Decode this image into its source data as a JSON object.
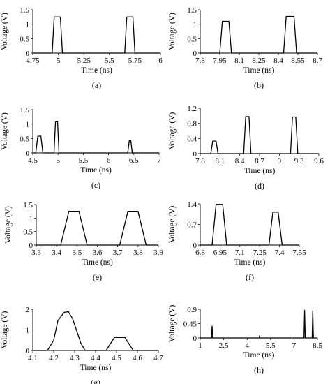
{
  "chart_data": [
    {
      "panel": "(a)",
      "type": "line",
      "xlabel": "Time (ns)",
      "ylabel": "Voltage (V)",
      "xlim": [
        4.75,
        6
      ],
      "ylim": [
        0,
        1.5
      ],
      "xticks": [
        "4.75",
        "5",
        "5.25",
        "5.5",
        "5.75",
        "6"
      ],
      "yticks": [
        "0",
        "0.5",
        "1",
        "1.5"
      ],
      "series": [
        {
          "x": [
            4.75,
            4.94,
            4.96,
            5.02,
            5.04,
            5.65,
            5.67,
            5.73,
            5.75,
            6.0
          ],
          "y": [
            0,
            0,
            1.25,
            1.25,
            0,
            0,
            1.25,
            1.25,
            0,
            0
          ]
        }
      ]
    },
    {
      "panel": "(b)",
      "type": "line",
      "xlabel": "Time (ns)",
      "ylabel": "Voltage (V)",
      "xlim": [
        7.8,
        8.7
      ],
      "ylim": [
        0,
        1.5
      ],
      "xticks": [
        "7.8",
        "7.95",
        "8.1",
        "8.25",
        "8.4",
        "8.55",
        "8.7"
      ],
      "yticks": [
        "0",
        "0.5",
        "1",
        "1.5"
      ],
      "series": [
        {
          "x": [
            7.8,
            7.95,
            7.97,
            8.02,
            8.04,
            8.44,
            8.46,
            8.52,
            8.54,
            8.7
          ],
          "y": [
            0,
            0,
            1.1,
            1.1,
            0,
            0,
            1.27,
            1.27,
            0,
            0
          ]
        }
      ]
    },
    {
      "panel": "(c)",
      "type": "line",
      "xlabel": "Time (ns)",
      "ylabel": "Voltage (V)",
      "xlim": [
        4.5,
        7
      ],
      "ylim": [
        0,
        1.5
      ],
      "xticks": [
        "4.5",
        "5",
        "5.5",
        "6",
        "6.5",
        "7"
      ],
      "yticks": [
        "0",
        "0.5",
        "1",
        "1.5"
      ],
      "series": [
        {
          "x": [
            4.5,
            4.56,
            4.6,
            4.66,
            4.7,
            4.92,
            4.95,
            4.99,
            5.02,
            6.38,
            6.41,
            6.44,
            6.47,
            7.0
          ],
          "y": [
            0,
            0,
            0.58,
            0.58,
            0,
            0,
            1.08,
            1.08,
            0,
            0,
            0.42,
            0.42,
            0,
            0
          ]
        }
      ]
    },
    {
      "panel": "(d)",
      "type": "line",
      "xlabel": "Time (ns)",
      "ylabel": "Voltage (V)",
      "xlim": [
        7.8,
        9.6
      ],
      "ylim": [
        0,
        1.2
      ],
      "xticks": [
        "7.8",
        "8.1",
        "8.4",
        "8.7",
        "9",
        "9.3",
        "9.6"
      ],
      "yticks": [
        "0",
        "0.4",
        "0.8",
        "1.2"
      ],
      "series": [
        {
          "x": [
            7.8,
            7.96,
            7.99,
            8.04,
            8.07,
            8.46,
            8.49,
            8.54,
            8.57,
            9.17,
            9.2,
            9.25,
            9.28,
            9.6
          ],
          "y": [
            0,
            0,
            0.33,
            0.33,
            0,
            0,
            0.98,
            0.98,
            0,
            0,
            0.97,
            0.97,
            0,
            0
          ]
        }
      ]
    },
    {
      "panel": "(e)",
      "type": "line",
      "xlabel": "Time (ns)",
      "ylabel": "Voltage (V)",
      "xlim": [
        3.3,
        3.9
      ],
      "ylim": [
        0,
        1.5
      ],
      "xticks": [
        "3.3",
        "3.4",
        "3.5",
        "3.6",
        "3.7",
        "3.8",
        "3.9"
      ],
      "yticks": [
        "0",
        "0.5",
        "1",
        "1.5"
      ],
      "series": [
        {
          "x": [
            3.3,
            3.42,
            3.46,
            3.51,
            3.55,
            3.71,
            3.75,
            3.8,
            3.84,
            3.9
          ],
          "y": [
            0,
            0,
            1.25,
            1.25,
            0,
            0,
            1.25,
            1.25,
            0,
            0
          ]
        }
      ]
    },
    {
      "panel": "(f)",
      "type": "line",
      "xlabel": "Time (ns)",
      "ylabel": "Voltage (V)",
      "xlim": [
        6.8,
        7.55
      ],
      "ylim": [
        0,
        1.4
      ],
      "xticks": [
        "6.8",
        "6.95",
        "7.1",
        "7.25",
        "7.4",
        "7.55"
      ],
      "yticks": [
        "0",
        "0.7",
        "1.4"
      ],
      "series": [
        {
          "x": [
            6.8,
            6.89,
            6.92,
            6.97,
            7.0,
            7.32,
            7.35,
            7.39,
            7.42,
            7.55
          ],
          "y": [
            0,
            0,
            1.38,
            1.38,
            0,
            0,
            1.12,
            1.12,
            0,
            0
          ]
        }
      ]
    },
    {
      "panel": "(g)",
      "type": "line",
      "xlabel": "Time (ns)",
      "ylabel": "Voltage (V)",
      "xlim": [
        4.1,
        4.7
      ],
      "ylim": [
        0,
        2
      ],
      "xticks": [
        "4.1",
        "4.2",
        "4.3",
        "4.4",
        "4.5",
        "4.6",
        "4.7"
      ],
      "yticks": [
        "0",
        "1",
        "2"
      ],
      "series": [
        {
          "x": [
            4.1,
            4.17,
            4.2,
            4.22,
            4.25,
            4.27,
            4.29,
            4.31,
            4.33,
            4.35,
            4.45,
            4.49,
            4.54,
            4.58,
            4.7
          ],
          "y": [
            0,
            0,
            0.5,
            1.45,
            1.85,
            1.88,
            1.55,
            0.95,
            0.35,
            0,
            0,
            0.63,
            0.63,
            0,
            0
          ]
        }
      ]
    },
    {
      "panel": "(h)",
      "type": "line",
      "xlabel": "Time (ns)",
      "ylabel": "Voltage (V)",
      "xlim": [
        1,
        8.5
      ],
      "ylim": [
        0,
        0.9
      ],
      "xticks": [
        "1",
        "2.5",
        "4",
        "5.5",
        "7",
        "8.5"
      ],
      "yticks": [
        "0",
        "0.45",
        "0.9"
      ],
      "series": [
        {
          "x": [
            1,
            1.72,
            1.76,
            1.8,
            4.78,
            4.8,
            4.82,
            7.64,
            7.68,
            7.72,
            8.16,
            8.2,
            8.24,
            8.5
          ],
          "y": [
            0,
            0,
            0.37,
            0,
            0,
            0.07,
            0,
            0,
            0.87,
            0,
            0,
            0.85,
            0,
            0
          ]
        }
      ]
    }
  ]
}
